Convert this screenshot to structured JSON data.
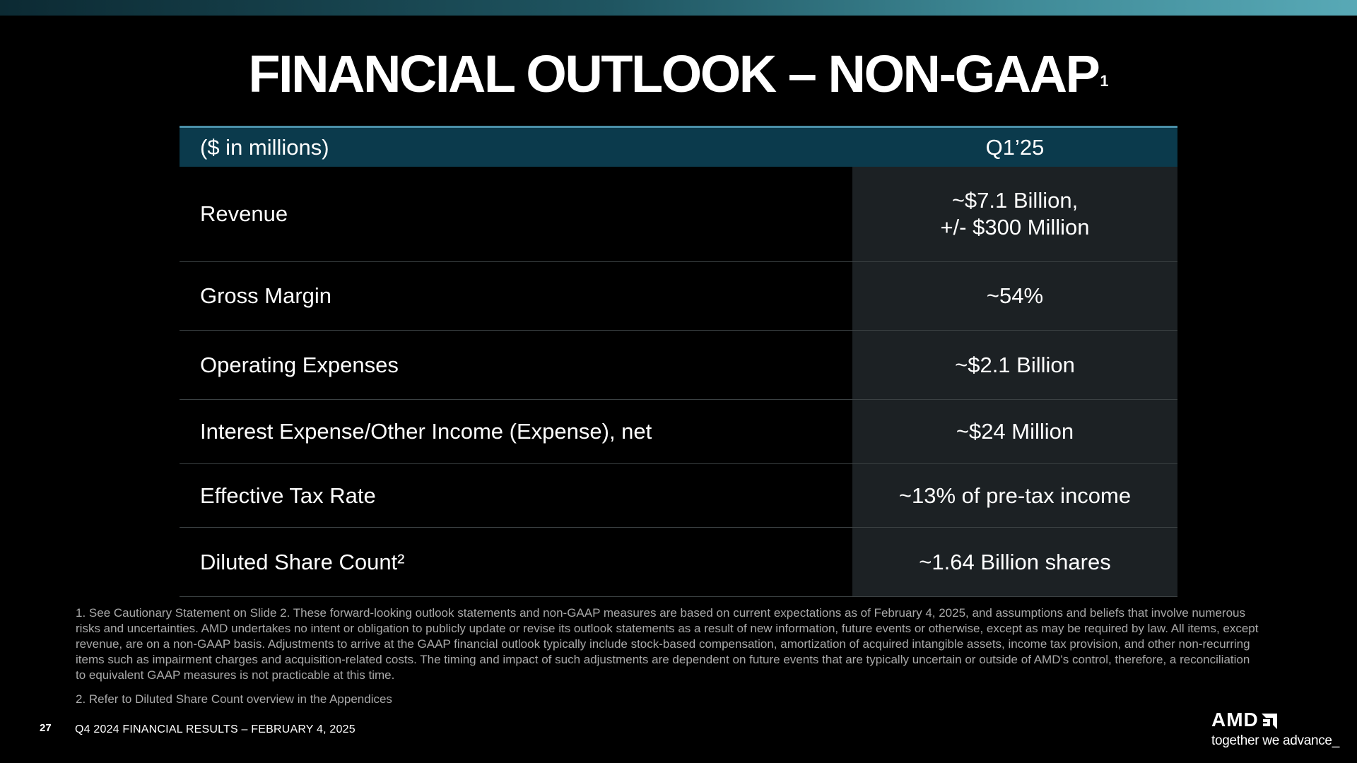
{
  "slide": {
    "title": "FINANCIAL OUTLOOK – NON-GAAP",
    "title_sup": "1",
    "accent_colors": {
      "header_bg": "#0b3a4c",
      "value_col_bg": "#1c2124",
      "top_bar_start": "#0c2a33",
      "top_bar_end": "#58a9b6"
    }
  },
  "table": {
    "header": {
      "label": "($ in millions)",
      "period": "Q1’25"
    },
    "rows": [
      {
        "label": "Revenue",
        "value_line1": "~$7.1 Billion,",
        "value_line2": "+/- $300 Million"
      },
      {
        "label": "Gross Margin",
        "value_line1": "~54%"
      },
      {
        "label": "Operating Expenses",
        "value_line1": "~$2.1 Billion"
      },
      {
        "label": "Interest Expense/Other Income (Expense), net",
        "value_line1": "~$24 Million"
      },
      {
        "label": "Effective Tax Rate",
        "value_line1": "~13% of pre-tax income"
      },
      {
        "label": "Diluted Share Count²",
        "value_line1": "~1.64 Billion shares"
      }
    ]
  },
  "footnotes": {
    "note1": "1.  See Cautionary Statement on Slide 2. These forward-looking outlook statements and non-GAAP measures are based on current expectations as of February 4, 2025, and assumptions and beliefs that involve numerous risks and uncertainties. AMD undertakes no intent or obligation to publicly update or revise its outlook statements as a result of new information, future events or otherwise, except as may be required by law. All items, except revenue, are on a non-GAAP basis. Adjustments to arrive at the GAAP financial outlook typically include stock-based compensation, amortization of acquired intangible assets, income tax provision, and other non-recurring items such as impairment charges and acquisition-related costs. The timing and impact of such adjustments are dependent on future events that are typically uncertain or outside of AMD's control, therefore, a reconciliation to equivalent GAAP measures is not practicable at this time.",
    "note2": "2.  Refer to Diluted Share Count overview in the Appendices"
  },
  "footer": {
    "page_number": "27",
    "text": "Q4 2024 FINANCIAL RESULTS – FEBRUARY 4, 2025"
  },
  "logo": {
    "wordmark": "AMD",
    "icon": "amd-arrow-icon",
    "tagline": "together we advance_"
  }
}
